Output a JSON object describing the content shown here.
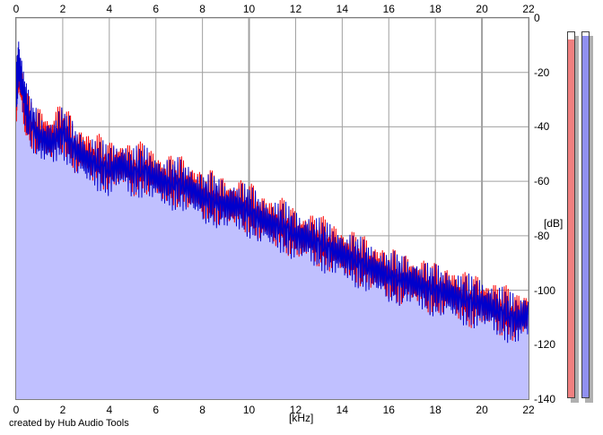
{
  "app": {
    "credit": "created by Hub Audio Tools"
  },
  "colors": {
    "channel_left": "#ff0000",
    "channel_right": "#0000cc",
    "fill": "#c0c0ff",
    "grid": "#a0a0a0",
    "meter_left": "#f08080",
    "meter_right": "#9090f0"
  },
  "chart_data": {
    "type": "line",
    "xlabel": "[kHz]",
    "ylabel": "[dB]",
    "xlim": [
      0,
      22
    ],
    "ylim": [
      -140,
      0
    ],
    "x_ticks": [
      "0",
      "2",
      "4",
      "6",
      "8",
      "10",
      "12",
      "14",
      "16",
      "18",
      "20",
      "22"
    ],
    "y_ticks": [
      "0",
      "-20",
      "-40",
      "-60",
      "-80",
      "-100",
      "-120",
      "-140"
    ],
    "grid": true,
    "fill_under": true,
    "series": [
      {
        "color": "#ff0000",
        "x": [
          0,
          0.1,
          0.2,
          0.5,
          1,
          1.5,
          2,
          2.5,
          3,
          3.5,
          4,
          4.5,
          5,
          5.5,
          6,
          6.5,
          7,
          7.5,
          8,
          8.5,
          9,
          9.5,
          10,
          10.5,
          11,
          11.5,
          12,
          12.5,
          13,
          13.5,
          14,
          14.5,
          15,
          15.5,
          16,
          16.5,
          17,
          17.5,
          18,
          18.5,
          19,
          19.5,
          20,
          20.5,
          21,
          21.5,
          22
        ],
        "y": [
          -30,
          -18,
          -25,
          -38,
          -42,
          -44,
          -40,
          -48,
          -50,
          -52,
          -55,
          -53,
          -56,
          -55,
          -58,
          -60,
          -60,
          -62,
          -65,
          -66,
          -68,
          -68,
          -70,
          -73,
          -75,
          -76,
          -80,
          -80,
          -82,
          -84,
          -86,
          -88,
          -90,
          -92,
          -94,
          -96,
          -96,
          -98,
          -100,
          -100,
          -102,
          -104,
          -104,
          -106,
          -108,
          -110,
          -108
        ]
      },
      {
        "color": "#0000cc",
        "x": [
          0,
          0.1,
          0.2,
          0.5,
          1,
          1.5,
          2,
          2.5,
          3,
          3.5,
          4,
          4.5,
          5,
          5.5,
          6,
          6.5,
          7,
          7.5,
          8,
          8.5,
          9,
          9.5,
          10,
          10.5,
          11,
          11.5,
          12,
          12.5,
          13,
          13.5,
          14,
          14.5,
          15,
          15.5,
          16,
          16.5,
          17,
          17.5,
          18,
          18.5,
          19,
          19.5,
          20,
          20.5,
          21,
          21.5,
          22
        ],
        "y": [
          -28,
          -16,
          -22,
          -36,
          -44,
          -46,
          -42,
          -48,
          -52,
          -54,
          -56,
          -54,
          -57,
          -56,
          -59,
          -61,
          -61,
          -63,
          -66,
          -67,
          -69,
          -69,
          -71,
          -74,
          -76,
          -77,
          -80,
          -81,
          -83,
          -85,
          -87,
          -89,
          -91,
          -93,
          -95,
          -96,
          -97,
          -99,
          -100,
          -101,
          -103,
          -104,
          -105,
          -107,
          -109,
          -111,
          -109
        ]
      }
    ]
  },
  "meters": {
    "left_level": 0.98,
    "right_level": 0.99
  }
}
